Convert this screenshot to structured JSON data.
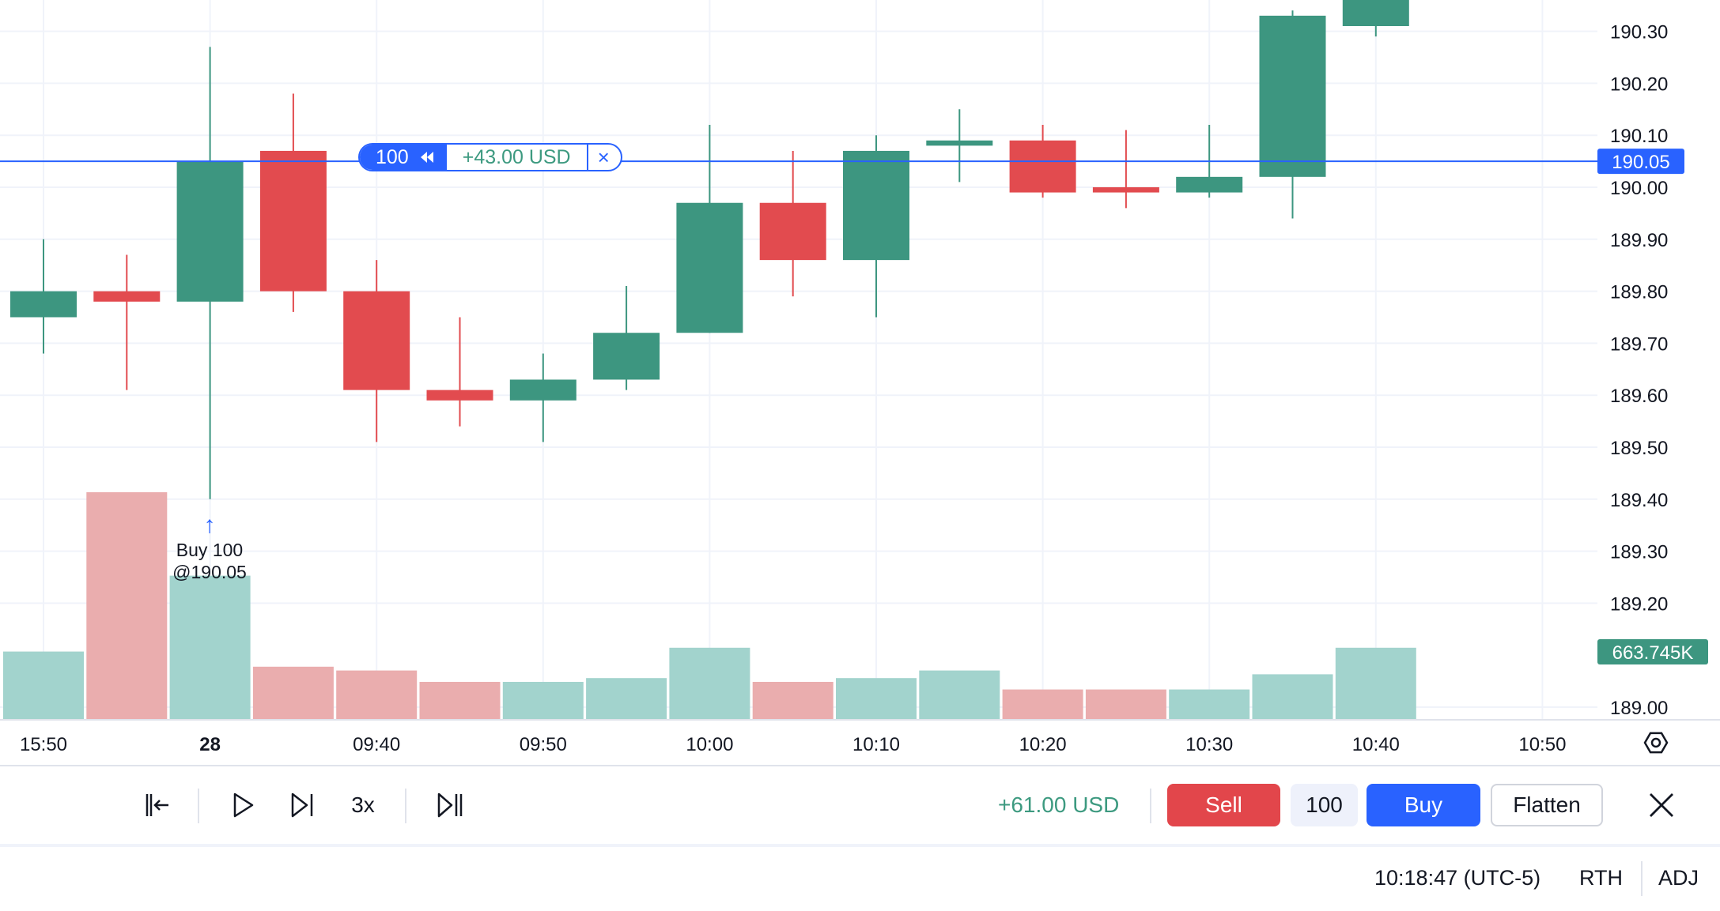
{
  "chart_data": {
    "type": "candlestick",
    "price_axis": {
      "ticks": [
        "190.30",
        "190.20",
        "190.10",
        "190.00",
        "189.90",
        "189.80",
        "189.70",
        "189.60",
        "189.50",
        "189.40",
        "189.30",
        "189.20",
        "189.00"
      ],
      "tick_values": [
        190.3,
        190.2,
        190.1,
        190.0,
        189.9,
        189.8,
        189.7,
        189.6,
        189.5,
        189.4,
        189.3,
        189.2,
        189.0
      ],
      "current_price_label": "190.05",
      "current_price": 190.05,
      "volume_label": "663.745K"
    },
    "time_axis": {
      "ticks": [
        "15:50",
        "28",
        "09:40",
        "09:50",
        "10:00",
        "10:10",
        "10:20",
        "10:30",
        "10:40",
        "10:50"
      ],
      "bold": [
        false,
        true,
        false,
        false,
        false,
        false,
        false,
        false,
        false,
        false
      ]
    },
    "candles": [
      {
        "o": 189.75,
        "h": 189.9,
        "l": 189.68,
        "c": 189.8,
        "vol": 0.18
      },
      {
        "o": 189.8,
        "h": 189.87,
        "l": 189.61,
        "c": 189.78,
        "vol": 0.6
      },
      {
        "o": 189.78,
        "h": 190.27,
        "l": 189.4,
        "c": 190.05,
        "vol": 0.38
      },
      {
        "o": 190.07,
        "h": 190.18,
        "l": 189.76,
        "c": 189.8,
        "vol": 0.14
      },
      {
        "o": 189.8,
        "h": 189.86,
        "l": 189.51,
        "c": 189.61,
        "vol": 0.13
      },
      {
        "o": 189.61,
        "h": 189.75,
        "l": 189.54,
        "c": 189.59,
        "vol": 0.1
      },
      {
        "o": 189.59,
        "h": 189.68,
        "l": 189.51,
        "c": 189.63,
        "vol": 0.1
      },
      {
        "o": 189.63,
        "h": 189.81,
        "l": 189.61,
        "c": 189.72,
        "vol": 0.11
      },
      {
        "o": 189.72,
        "h": 190.12,
        "l": 189.72,
        "c": 189.97,
        "vol": 0.19
      },
      {
        "o": 189.97,
        "h": 190.07,
        "l": 189.79,
        "c": 189.86,
        "vol": 0.1
      },
      {
        "o": 189.86,
        "h": 190.1,
        "l": 189.75,
        "c": 190.07,
        "vol": 0.11
      },
      {
        "o": 190.08,
        "h": 190.15,
        "l": 190.01,
        "c": 190.09,
        "vol": 0.13
      },
      {
        "o": 190.09,
        "h": 190.12,
        "l": 189.98,
        "c": 189.99,
        "vol": 0.08
      },
      {
        "o": 190.0,
        "h": 190.11,
        "l": 189.96,
        "c": 189.99,
        "vol": 0.08
      },
      {
        "o": 189.99,
        "h": 190.12,
        "l": 189.98,
        "c": 190.02,
        "vol": 0.08
      },
      {
        "o": 190.02,
        "h": 190.34,
        "l": 189.94,
        "c": 190.33,
        "vol": 0.12
      },
      {
        "o": 190.31,
        "h": 190.38,
        "l": 190.29,
        "c": 190.38,
        "vol": 0.19
      }
    ],
    "colors": {
      "up": "#3d9680",
      "down": "#e24b4f",
      "up_vol": "#a2d3cd",
      "down_vol": "#eaadae",
      "price_line": "#2962ff"
    },
    "grid": true
  },
  "position": {
    "qty": "100",
    "pnl": "+43.00 USD",
    "close_icon": "×"
  },
  "trade_marker": {
    "line1": "Buy 100",
    "line2": "@190.05"
  },
  "toolbar": {
    "pnl": "+61.00 USD",
    "speed": "3x",
    "sell": "Sell",
    "qty": "100",
    "buy": "Buy",
    "flatten": "Flatten"
  },
  "statusbar": {
    "time": "10:18:47 (UTC-5)",
    "session": "RTH",
    "adj": "ADJ"
  }
}
